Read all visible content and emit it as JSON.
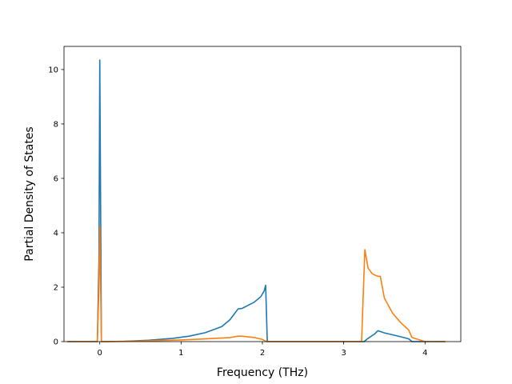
{
  "chart_data": {
    "type": "line",
    "title": "",
    "xlabel": "Frequency (THz)",
    "ylabel": "Partial Density of States",
    "xlim": [
      -0.44,
      4.44
    ],
    "ylim": [
      0,
      10.85
    ],
    "xticks": [
      0,
      1,
      2,
      3,
      4
    ],
    "yticks": [
      0,
      2,
      4,
      6,
      8,
      10
    ],
    "xtick_labels": [
      "0",
      "1",
      "2",
      "3",
      "4"
    ],
    "ytick_labels": [
      "0",
      "2",
      "4",
      "6",
      "8",
      "10"
    ],
    "grid": false,
    "legend": "none",
    "series": [
      {
        "color": "#1f77b4",
        "x": [
          -0.4,
          -0.03,
          -0.01,
          0.0,
          0.02,
          0.05,
          0.3,
          0.6,
          0.9,
          1.1,
          1.3,
          1.5,
          1.6,
          1.65,
          1.7,
          1.75,
          1.9,
          1.98,
          2.02,
          2.04,
          2.06,
          2.5,
          3.0,
          3.25,
          3.3,
          3.38,
          3.42,
          3.5,
          3.6,
          3.7,
          3.8,
          3.84,
          4.0,
          4.25
        ],
        "y": [
          0.0,
          0.0,
          3.0,
          10.35,
          0.0,
          0.0,
          0.01,
          0.05,
          0.12,
          0.2,
          0.33,
          0.55,
          0.8,
          1.0,
          1.2,
          1.22,
          1.45,
          1.65,
          1.85,
          2.07,
          0.0,
          0.0,
          0.0,
          0.0,
          0.12,
          0.28,
          0.4,
          0.32,
          0.25,
          0.18,
          0.1,
          0.0,
          0.0,
          0.0
        ]
      },
      {
        "color": "#ff7f0e",
        "x": [
          -0.4,
          -0.03,
          -0.01,
          0.0,
          0.02,
          0.05,
          0.5,
          1.0,
          1.3,
          1.5,
          1.6,
          1.65,
          1.7,
          1.75,
          1.9,
          2.0,
          2.05,
          2.5,
          3.0,
          3.22,
          3.26,
          3.3,
          3.35,
          3.38,
          3.42,
          3.45,
          3.5,
          3.6,
          3.7,
          3.8,
          3.84,
          4.0,
          4.25
        ],
        "y": [
          0.0,
          0.0,
          2.0,
          4.2,
          0.0,
          0.0,
          0.02,
          0.06,
          0.1,
          0.13,
          0.15,
          0.17,
          0.2,
          0.2,
          0.15,
          0.08,
          0.0,
          0.0,
          0.0,
          0.0,
          3.38,
          2.7,
          2.5,
          2.45,
          2.4,
          2.4,
          1.6,
          1.05,
          0.7,
          0.42,
          0.15,
          0.0,
          0.0
        ]
      }
    ]
  }
}
